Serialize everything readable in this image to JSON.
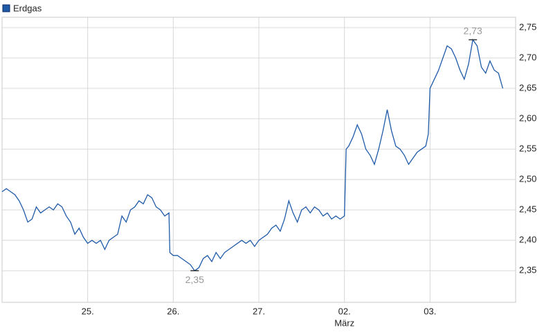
{
  "chart_data": {
    "type": "line",
    "x_label": "März",
    "xlim": [
      0,
      6
    ],
    "xticks": [
      {
        "value": 1,
        "label": "25."
      },
      {
        "value": 2,
        "label": "26."
      },
      {
        "value": 3,
        "label": "27."
      },
      {
        "value": 4,
        "label": "02."
      },
      {
        "value": 5,
        "label": "03."
      }
    ],
    "ylim": [
      2.298,
      2.767
    ],
    "yticks": [
      {
        "value": 2.35,
        "label": "2,35"
      },
      {
        "value": 2.4,
        "label": "2,40"
      },
      {
        "value": 2.45,
        "label": "2,45"
      },
      {
        "value": 2.5,
        "label": "2,50"
      },
      {
        "value": 2.55,
        "label": "2,55"
      },
      {
        "value": 2.6,
        "label": "2,60"
      },
      {
        "value": 2.65,
        "label": "2,65"
      },
      {
        "value": 2.7,
        "label": "2,70"
      },
      {
        "value": 2.75,
        "label": "2,75"
      }
    ],
    "grid": true,
    "legend": "top-left",
    "x": [
      0,
      0.05,
      0.1,
      0.15,
      0.2,
      0.25,
      0.3,
      0.35,
      0.4,
      0.45,
      0.5,
      0.55,
      0.6,
      0.65,
      0.7,
      0.75,
      0.8,
      0.85,
      0.9,
      0.95,
      1.0,
      1.05,
      1.1,
      1.15,
      1.2,
      1.25,
      1.3,
      1.35,
      1.4,
      1.45,
      1.5,
      1.55,
      1.6,
      1.65,
      1.7,
      1.75,
      1.8,
      1.85,
      1.9,
      1.95,
      1.96,
      2.0,
      2.05,
      2.1,
      2.15,
      2.2,
      2.25,
      2.3,
      2.35,
      2.4,
      2.45,
      2.5,
      2.55,
      2.6,
      2.65,
      2.7,
      2.75,
      2.8,
      2.85,
      2.9,
      2.95,
      3.0,
      3.05,
      3.1,
      3.15,
      3.2,
      3.25,
      3.3,
      3.35,
      3.4,
      3.45,
      3.5,
      3.55,
      3.6,
      3.65,
      3.7,
      3.75,
      3.8,
      3.85,
      3.9,
      3.95,
      4.0,
      4.02,
      4.05,
      4.1,
      4.15,
      4.2,
      4.25,
      4.3,
      4.35,
      4.4,
      4.45,
      4.5,
      4.55,
      4.6,
      4.65,
      4.7,
      4.75,
      4.8,
      4.85,
      4.9,
      4.95,
      4.98,
      5.0,
      5.05,
      5.1,
      5.15,
      5.2,
      5.25,
      5.3,
      5.35,
      5.4,
      5.45,
      5.5,
      5.55,
      5.6,
      5.65,
      5.7,
      5.75,
      5.8,
      5.85
    ],
    "series": [
      {
        "name": "Erdgas",
        "color": "#1f5aa8",
        "values": [
          2.48,
          2.485,
          2.48,
          2.475,
          2.465,
          2.45,
          2.43,
          2.435,
          2.455,
          2.445,
          2.45,
          2.455,
          2.45,
          2.46,
          2.455,
          2.44,
          2.43,
          2.41,
          2.42,
          2.405,
          2.395,
          2.4,
          2.395,
          2.4,
          2.385,
          2.4,
          2.405,
          2.41,
          2.44,
          2.43,
          2.45,
          2.455,
          2.465,
          2.46,
          2.475,
          2.47,
          2.455,
          2.45,
          2.44,
          2.445,
          2.38,
          2.375,
          2.375,
          2.37,
          2.365,
          2.36,
          2.35,
          2.355,
          2.37,
          2.375,
          2.365,
          2.38,
          2.37,
          2.38,
          2.385,
          2.39,
          2.395,
          2.4,
          2.395,
          2.4,
          2.39,
          2.4,
          2.405,
          2.41,
          2.42,
          2.425,
          2.415,
          2.435,
          2.465,
          2.445,
          2.43,
          2.45,
          2.455,
          2.445,
          2.455,
          2.45,
          2.44,
          2.445,
          2.435,
          2.44,
          2.435,
          2.44,
          2.55,
          2.555,
          2.57,
          2.59,
          2.575,
          2.55,
          2.54,
          2.525,
          2.55,
          2.58,
          2.615,
          2.58,
          2.555,
          2.55,
          2.54,
          2.525,
          2.535,
          2.545,
          2.55,
          2.555,
          2.575,
          2.65,
          2.665,
          2.68,
          2.7,
          2.72,
          2.715,
          2.7,
          2.68,
          2.665,
          2.69,
          2.73,
          2.72,
          2.685,
          2.675,
          2.695,
          2.68,
          2.675,
          2.65
        ]
      }
    ],
    "annotations": [
      {
        "text": "2,73",
        "x": 5.5,
        "y": 2.73
      },
      {
        "text": "2,35",
        "x": 2.25,
        "y": 2.35
      }
    ]
  }
}
